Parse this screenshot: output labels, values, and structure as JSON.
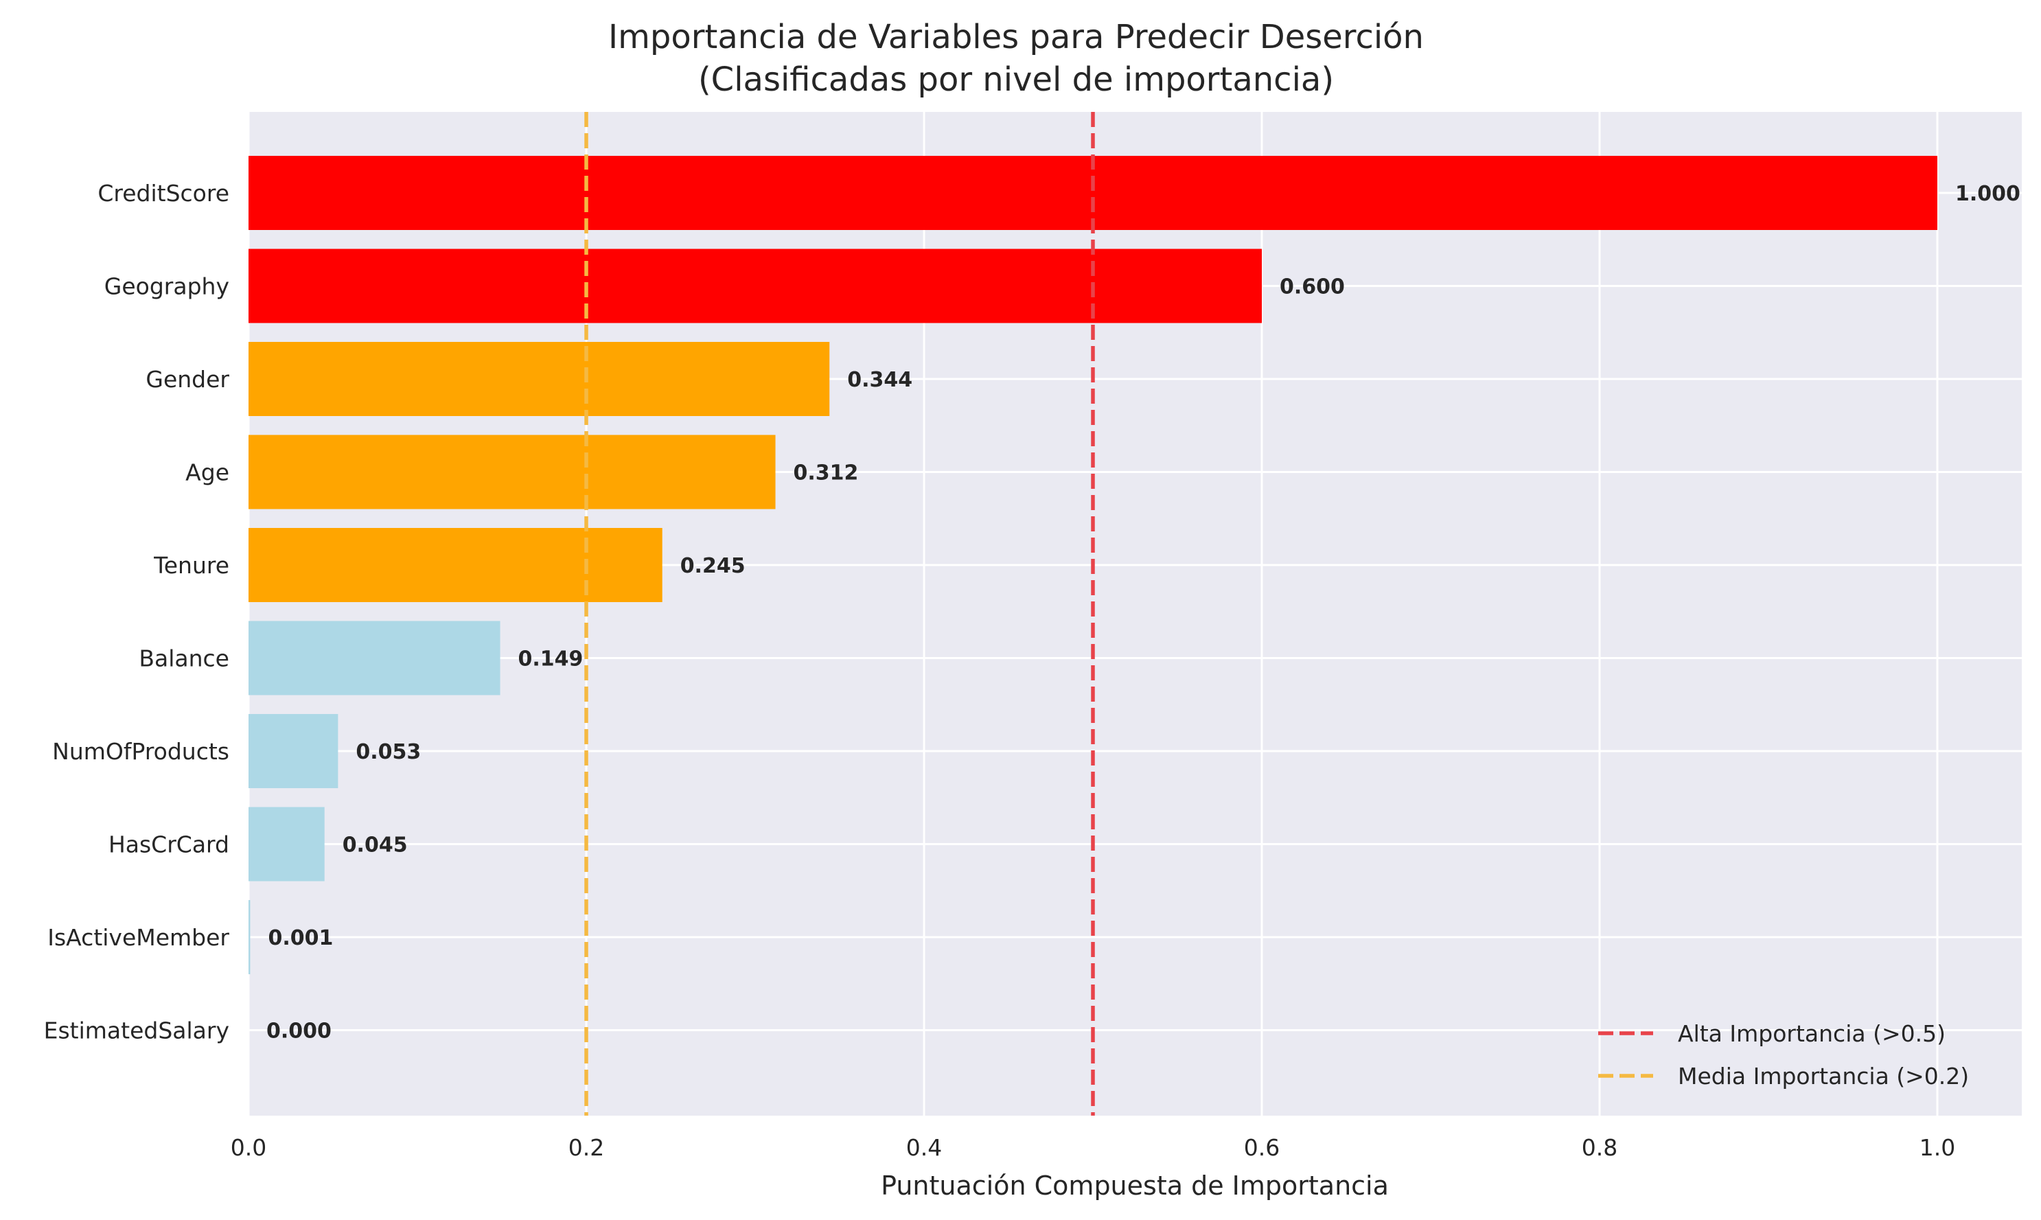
{
  "chart_data": {
    "type": "bar",
    "orientation": "horizontal",
    "title": "Importancia de Variables para Predecir Deserción",
    "subtitle": "(Clasificadas por nivel de importancia)",
    "xlabel": "Puntuación Compuesta de Importancia",
    "ylabel": "",
    "xlim": [
      0,
      1.05
    ],
    "xticks": [
      0.0,
      0.2,
      0.4,
      0.6,
      0.8,
      1.0
    ],
    "xtick_labels": [
      "0.0",
      "0.2",
      "0.4",
      "0.6",
      "0.8",
      "1.0"
    ],
    "grid": true,
    "categories": [
      "CreditScore",
      "Geography",
      "Gender",
      "Age",
      "Tenure",
      "Balance",
      "NumOfProducts",
      "HasCrCard",
      "IsActiveMember",
      "EstimatedSalary"
    ],
    "values": [
      1.0,
      0.6,
      0.344,
      0.312,
      0.245,
      0.149,
      0.053,
      0.045,
      0.001,
      0.0
    ],
    "value_labels": [
      "1.000",
      "0.600",
      "0.344",
      "0.312",
      "0.245",
      "0.149",
      "0.053",
      "0.045",
      "0.001",
      "0.000"
    ],
    "bar_colors": [
      "#ff0000",
      "#ff0000",
      "#ffa500",
      "#ffa500",
      "#ffa500",
      "#add8e6",
      "#add8e6",
      "#add8e6",
      "#add8e6",
      "#add8e6"
    ],
    "reference_lines": [
      {
        "value": 0.5,
        "label": "Alta Importancia (>0.5)",
        "color": "#e8434a"
      },
      {
        "value": 0.2,
        "label": "Media Importancia (>0.2)",
        "color": "#f5b942"
      }
    ],
    "legend_position": "lower-right",
    "background_color": "#eaeaf2",
    "grid_color": "#ffffff"
  }
}
